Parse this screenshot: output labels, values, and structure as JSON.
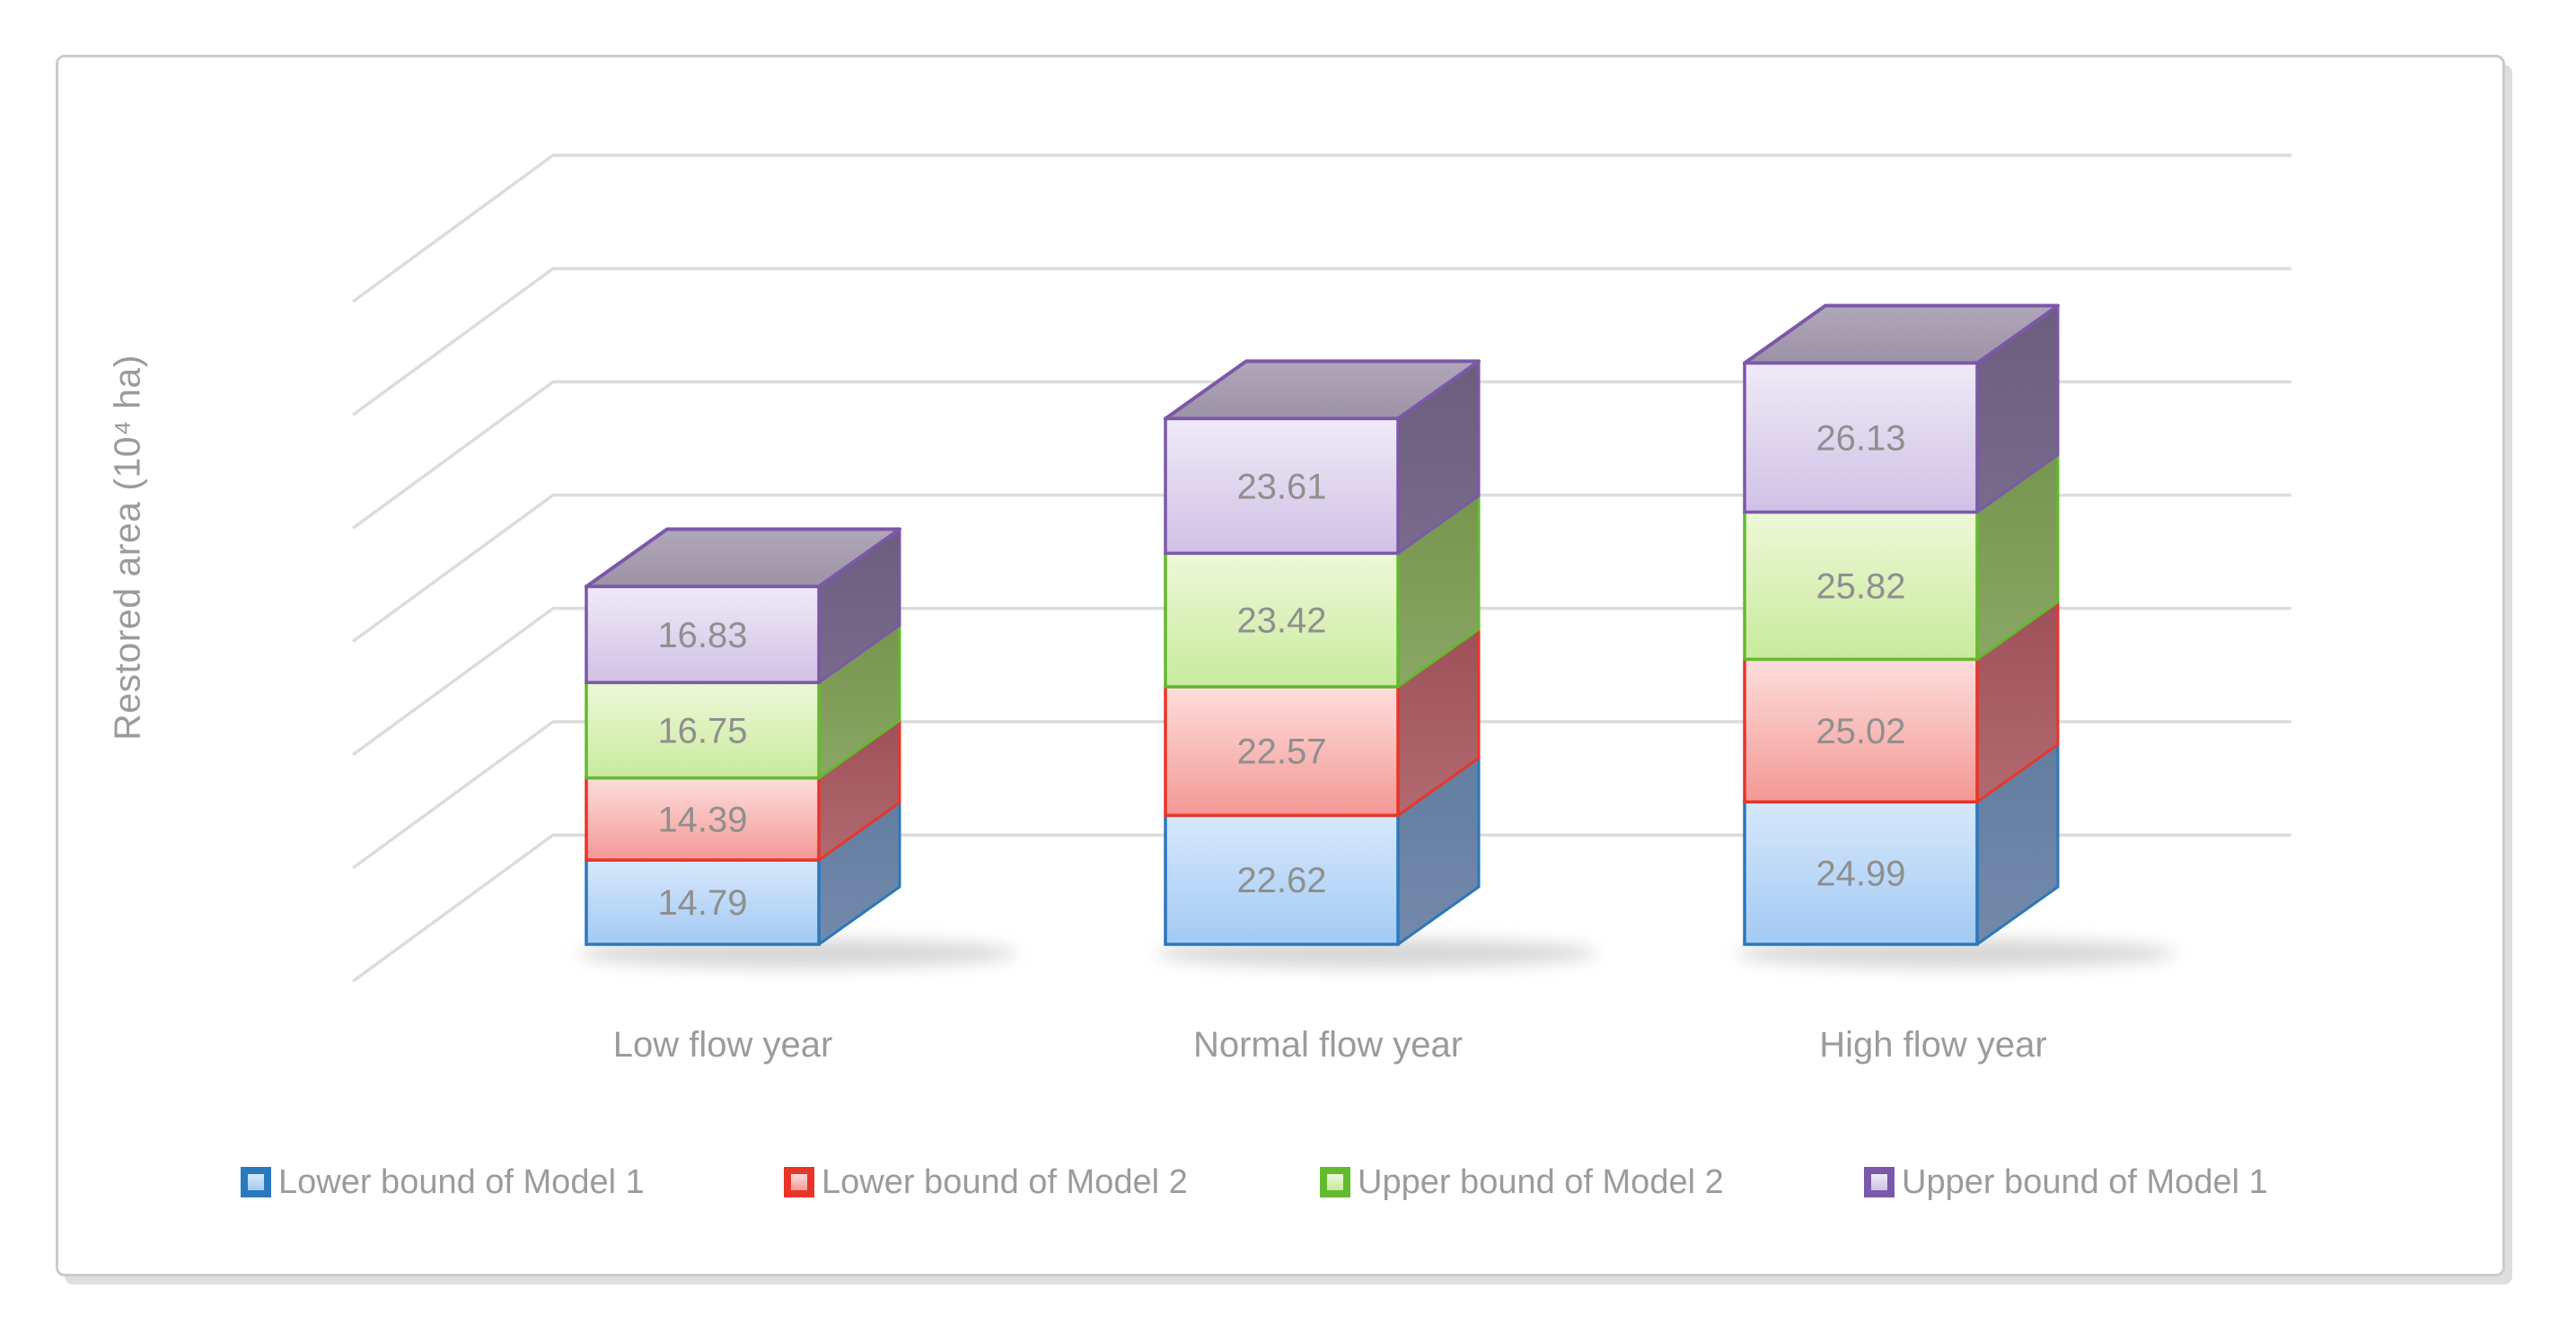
{
  "figure": {
    "frame_color": "#cbcbcb",
    "background_color": "#ffffff",
    "gridline_color": "#dcdcdc",
    "axis_text_color": "#9b9b9b",
    "value_label_color": "#8f8f8f"
  },
  "chart_data": {
    "type": "bar",
    "subtype": "3d-stacked-column",
    "title": "",
    "xlabel": "",
    "ylabel": "Restored area (10⁴ ha)",
    "gridlines": true,
    "legend_position": "bottom",
    "value_labels": "center",
    "categories": [
      "Low flow year",
      "Normal flow year",
      "High flow year"
    ],
    "series": [
      {
        "name": "Lower bound of Model 1",
        "values": [
          14.79,
          22.62,
          24.99
        ],
        "labels": [
          "14.79",
          "22.62",
          "24.99"
        ],
        "border": "#2a78bd",
        "front": [
          "#d6e8fb",
          "#a3caf4"
        ],
        "side": [
          "#637e9f",
          "#7389ab"
        ]
      },
      {
        "name": "Lower bound of Model 2",
        "values": [
          14.39,
          22.57,
          25.02
        ],
        "labels": [
          "14.39",
          "22.57",
          "25.02"
        ],
        "border": "#e83529",
        "front": [
          "#fcdedc",
          "#f49894"
        ],
        "side": [
          "#9e5058",
          "#b26a70"
        ]
      },
      {
        "name": "Upper bound of Model 2",
        "values": [
          16.75,
          23.42,
          25.82
        ],
        "labels": [
          "16.75",
          "23.42",
          "25.82"
        ],
        "border": "#63ba2f",
        "front": [
          "#eef8d8",
          "#c8ea9d"
        ],
        "side": [
          "#76954e",
          "#8aa765"
        ]
      },
      {
        "name": "Upper bound of Model 1",
        "values": [
          16.83,
          23.61,
          26.13
        ],
        "labels": [
          "16.83",
          "23.61",
          "26.13"
        ],
        "border": "#7b58a9",
        "front": [
          "#f0eaf8",
          "#cfc1e5"
        ],
        "side": [
          "#6b5d7e",
          "#796b8d"
        ],
        "top": [
          "#b0a7b9",
          "#9c93a6"
        ]
      }
    ]
  }
}
